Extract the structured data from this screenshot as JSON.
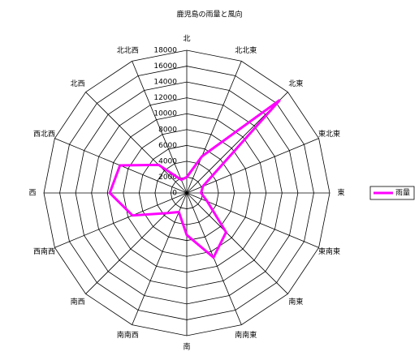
{
  "chart_data": {
    "type": "radar",
    "title": "鹿児島の雨量と風向",
    "categories": [
      "北",
      "北北東",
      "北東",
      "東北東",
      "東",
      "東南東",
      "南東",
      "南南東",
      "南",
      "南南西",
      "南西",
      "西南西",
      "西",
      "西北西",
      "北西",
      "北北西"
    ],
    "series": [
      {
        "name": "雨量",
        "color": "#ff00ff",
        "values": [
          2000,
          5000,
          16600,
          2200,
          1800,
          2800,
          7000,
          8800,
          5300,
          2600,
          3600,
          7400,
          9700,
          9100,
          5000,
          1800
        ]
      }
    ],
    "ylim": [
      0,
      18000
    ],
    "yticks": [
      0,
      2000,
      4000,
      6000,
      8000,
      10000,
      12000,
      14000,
      16000,
      18000
    ],
    "grid": true,
    "legend": "right"
  }
}
